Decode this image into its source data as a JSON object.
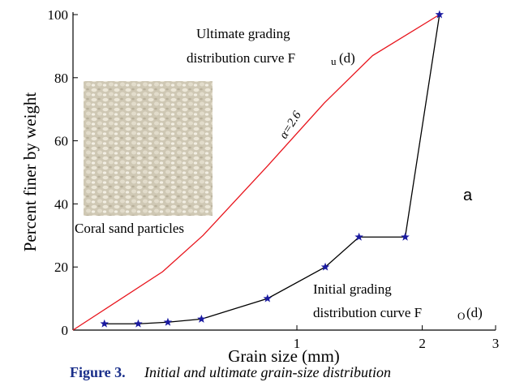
{
  "chart_data": {
    "type": "line",
    "x_label": "Grain size (mm)",
    "y_label": "Percent  finer by weight",
    "xlim": [
      0.29,
      3
    ],
    "ylim": [
      0,
      100
    ],
    "log_x": true,
    "xticks": [
      1,
      2,
      3
    ],
    "yticks": [
      0,
      20,
      40,
      60,
      80,
      100
    ],
    "series": [
      {
        "color": "#e8141c",
        "marker": "none",
        "x": [
          0.29,
          0.476,
          0.595,
          0.85,
          1.164,
          1.52,
          2.2
        ],
        "values": [
          0,
          18.5,
          30,
          52,
          72,
          87,
          100
        ]
      },
      {
        "color": "#000000",
        "marker": "star",
        "marker_color": "#1a1aa0",
        "x": [
          0.345,
          0.416,
          0.49,
          0.59,
          0.85,
          1.17,
          1.41,
          1.82,
          2.2
        ],
        "values": [
          2,
          2,
          2.5,
          3.5,
          10,
          20,
          29.5,
          29.5,
          100
        ]
      }
    ],
    "annotations": {
      "ultimate_line1": "Ultimate grading",
      "ultimate_line2": "distribution curve F",
      "ultimate_sub": "u",
      "ultimate_tail": "(d)",
      "alpha": "α=2.6",
      "panel": "a",
      "photo_caption": "Coral sand particles",
      "initial_line1": "Initial grading",
      "initial_line2": "distribution curve F",
      "initial_sub": "O",
      "initial_tail": "(d)"
    },
    "figure_caption": {
      "label": "Figure 3.",
      "text": "Initial and ultimate grain-size distribution"
    }
  }
}
